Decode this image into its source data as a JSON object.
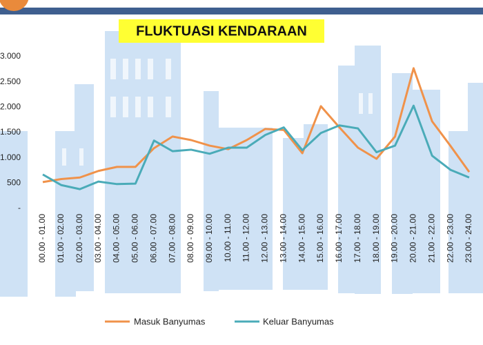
{
  "chart_data": {
    "type": "line",
    "title": "FLUKTUASI KENDARAAN",
    "categories": [
      "00.00 - 01.00",
      "01.00 - 02.00",
      "02.00 - 03.00",
      "03.00 - 04.00",
      "04.00 - 05.00",
      "05.00 - 06.00",
      "06.00 - 07.00",
      "07.00 - 08.00",
      "08.00 - 09.00",
      "09.00 - 10.00",
      "10.00 - 11.00",
      "11.00 - 12.00",
      "12.00 - 13.00",
      "13.00 - 14.00",
      "14.00 - 15.00",
      "15.00 - 16.00",
      "16.00 - 17.00",
      "17.00 - 18.00",
      "18.00 - 19.00",
      "19.00 - 20.00",
      "20.00 - 21.00",
      "21.00 - 22.00",
      "22.00 - 23.00",
      "23.00 - 24.00"
    ],
    "series": [
      {
        "name": "Masuk Banyumas",
        "color": "#f0924a",
        "values": [
          520,
          580,
          610,
          740,
          820,
          820,
          1190,
          1420,
          1350,
          1240,
          1170,
          1350,
          1570,
          1550,
          1090,
          2020,
          1600,
          1200,
          980,
          1420,
          2770,
          1720,
          1230,
          720
        ]
      },
      {
        "name": "Keluar Banyumas",
        "color": "#4aabb8",
        "values": [
          670,
          460,
          380,
          530,
          480,
          490,
          1340,
          1130,
          1160,
          1080,
          1200,
          1200,
          1450,
          1600,
          1150,
          1490,
          1640,
          1580,
          1110,
          1240,
          2030,
          1040,
          760,
          610
        ]
      }
    ],
    "ylim": [
      0,
      3000
    ],
    "yticks": [
      {
        "value": 0,
        "label": "-"
      },
      {
        "value": 500,
        "label": "500"
      },
      {
        "value": 1000,
        "label": "1.000"
      },
      {
        "value": 1500,
        "label": "1.500"
      },
      {
        "value": 2000,
        "label": "2.000"
      },
      {
        "value": 2500,
        "label": "2.500"
      },
      {
        "value": 3000,
        "label": "3.000"
      }
    ]
  }
}
